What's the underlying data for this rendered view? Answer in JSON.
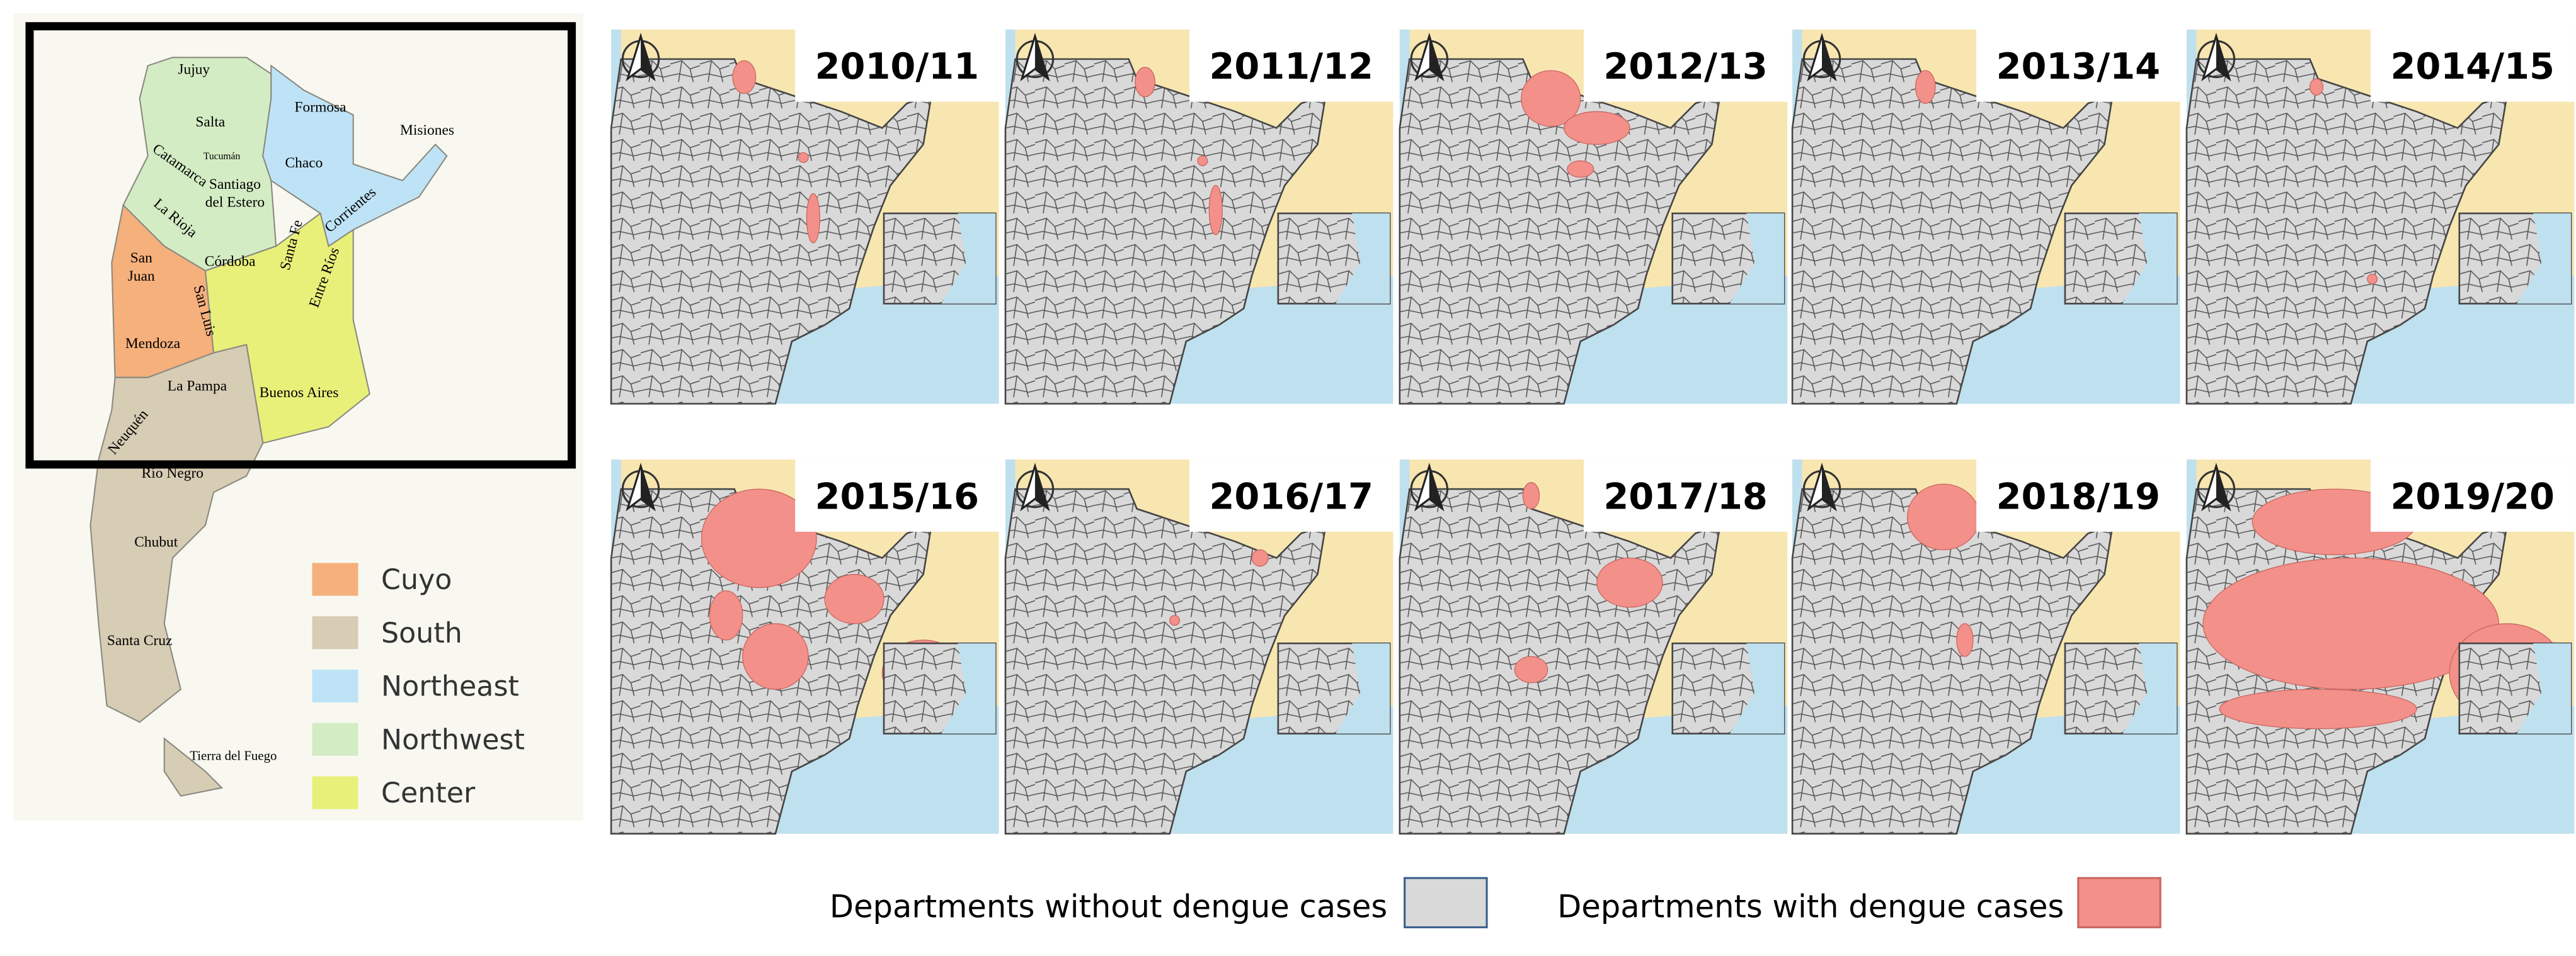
{
  "regional_map": {
    "provinces": [
      {
        "label": "Jujuy"
      },
      {
        "label": "Salta"
      },
      {
        "label": "Formosa"
      },
      {
        "label": "Misiones"
      },
      {
        "label": "Tucumán"
      },
      {
        "label": "Catamarca"
      },
      {
        "label": "Chaco"
      },
      {
        "lines": [
          "Santiago",
          "del Estero"
        ]
      },
      {
        "label": "Corrientes"
      },
      {
        "label": "La Rioja"
      },
      {
        "lines": [
          "San",
          "Juan"
        ]
      },
      {
        "label": "Córdoba"
      },
      {
        "label": "Santa Fe"
      },
      {
        "label": "Entre Ríos"
      },
      {
        "label": "San Luis"
      },
      {
        "label": "Mendoza"
      },
      {
        "label": "La Pampa"
      },
      {
        "label": "Buenos Aires"
      },
      {
        "label": "Neuquén"
      },
      {
        "label": "Río Negro"
      },
      {
        "label": "Chubut"
      },
      {
        "label": "Santa Cruz"
      },
      {
        "label": "Tierra del Fuego"
      }
    ],
    "legend": [
      {
        "label": "Cuyo",
        "color": "#f6b07c"
      },
      {
        "label": "South",
        "color": "#d7ccb4"
      },
      {
        "label": "Northeast",
        "color": "#bfe3f6"
      },
      {
        "label": "Northwest",
        "color": "#d4ecc4"
      },
      {
        "label": "Center",
        "color": "#e9f07a"
      }
    ]
  },
  "panels": [
    {
      "label": "2010/11"
    },
    {
      "label": "2011/12"
    },
    {
      "label": "2012/13"
    },
    {
      "label": "2013/14"
    },
    {
      "label": "2014/15"
    },
    {
      "label": "2015/16"
    },
    {
      "label": "2016/17"
    },
    {
      "label": "2017/18"
    },
    {
      "label": "2018/19"
    },
    {
      "label": "2019/20"
    }
  ],
  "legend": [
    {
      "label": "Departments without dengue cases",
      "color": "#d9d9d9"
    },
    {
      "label": "Departments with dengue cases",
      "color": "#f4908a"
    }
  ]
}
